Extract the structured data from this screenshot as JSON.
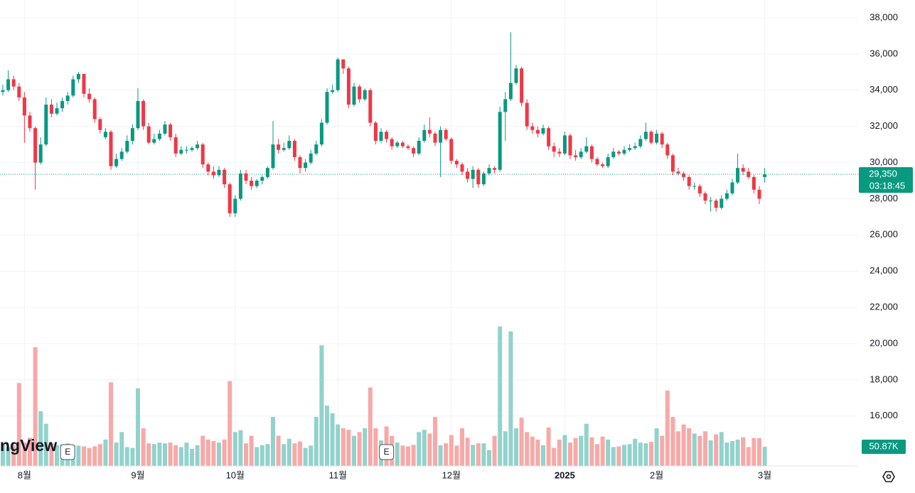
{
  "chart_data": {
    "type": "candlestick",
    "ylim": [
      13240,
      38980
    ],
    "yticks": [
      {
        "value": 16000,
        "label": "16,000"
      },
      {
        "value": 18000,
        "label": "18,000"
      },
      {
        "value": 20000,
        "label": "20,000"
      },
      {
        "value": 22000,
        "label": "22,000"
      },
      {
        "value": 24000,
        "label": "24,000"
      },
      {
        "value": 26000,
        "label": "26,000"
      },
      {
        "value": 28000,
        "label": "28,000"
      },
      {
        "value": 30000,
        "label": "30,000"
      },
      {
        "value": 32000,
        "label": "32,000"
      },
      {
        "value": 34000,
        "label": "34,000"
      },
      {
        "value": 36000,
        "label": "36,000"
      },
      {
        "value": 38000,
        "label": "38,000"
      }
    ],
    "xticks": [
      {
        "value": 4,
        "label": "8월"
      },
      {
        "value": 25,
        "label": "9월"
      },
      {
        "value": 43,
        "label": "10월"
      },
      {
        "value": 62,
        "label": "11월"
      },
      {
        "value": 83,
        "label": "12월"
      },
      {
        "value": 104,
        "label": "2025"
      },
      {
        "value": 121,
        "label": "2월"
      },
      {
        "value": 141,
        "label": "3월"
      }
    ],
    "grid": true,
    "up_color": "#089981",
    "down_color": "#f23645",
    "volume_up_color": "#92d2cc",
    "volume_down_color": "#f7a9a7",
    "volume_ylim": [
      0,
      400000
    ],
    "last_price": {
      "value": 29350,
      "label": "29,350"
    },
    "countdown": "03:18:45",
    "last_volume": {
      "value": 50870,
      "label": "50.87K"
    },
    "logo": "ngView",
    "event_markers": [
      {
        "value": 12,
        "label": "E"
      },
      {
        "value": 71,
        "label": "E"
      }
    ],
    "candles": [
      [
        33900,
        34300,
        33700,
        34000
      ],
      [
        34000,
        35100,
        33900,
        34600
      ],
      [
        34600,
        34800,
        34000,
        34200
      ],
      [
        34200,
        34400,
        33400,
        33600
      ],
      [
        33600,
        33900,
        31100,
        32600
      ],
      [
        32600,
        32800,
        31700,
        31900
      ],
      [
        31900,
        32000,
        28500,
        30000
      ],
      [
        30000,
        31400,
        29900,
        31000
      ],
      [
        31000,
        33600,
        30900,
        33200
      ],
      [
        33200,
        33500,
        32500,
        32700
      ],
      [
        32700,
        33300,
        32600,
        33000
      ],
      [
        33000,
        33600,
        32800,
        33400
      ],
      [
        33400,
        33900,
        33200,
        33700
      ],
      [
        33700,
        34800,
        33600,
        34600
      ],
      [
        34600,
        35000,
        34400,
        34900
      ],
      [
        34900,
        34900,
        33600,
        33800
      ],
      [
        33800,
        34100,
        33300,
        33500
      ],
      [
        33500,
        33600,
        32200,
        32400
      ],
      [
        32400,
        32500,
        31600,
        31800
      ],
      [
        31400,
        31900,
        31300,
        31700
      ],
      [
        31700,
        31800,
        29600,
        29800
      ],
      [
        29800,
        30500,
        29700,
        30200
      ],
      [
        30200,
        30800,
        30100,
        30600
      ],
      [
        30600,
        31500,
        30500,
        31200
      ],
      [
        31200,
        32100,
        31000,
        31900
      ],
      [
        31900,
        34100,
        31800,
        33400
      ],
      [
        33400,
        33500,
        31800,
        32000
      ],
      [
        32000,
        32200,
        31000,
        31100
      ],
      [
        31100,
        31600,
        31000,
        31300
      ],
      [
        31300,
        31800,
        31200,
        31600
      ],
      [
        31600,
        32300,
        31500,
        32100
      ],
      [
        32100,
        32200,
        31200,
        31400
      ],
      [
        31400,
        31600,
        30300,
        30500
      ],
      [
        30500,
        30900,
        30400,
        30700
      ],
      [
        30700,
        30900,
        30500,
        30700
      ],
      [
        30700,
        30900,
        30600,
        30800
      ],
      [
        30800,
        31200,
        30700,
        31000
      ],
      [
        31000,
        31100,
        29700,
        29900
      ],
      [
        29900,
        30000,
        29300,
        29500
      ],
      [
        29500,
        29800,
        29100,
        29300
      ],
      [
        29300,
        29800,
        29200,
        29600
      ],
      [
        29600,
        29700,
        28600,
        28800
      ],
      [
        28800,
        28900,
        27000,
        27200
      ],
      [
        27200,
        28200,
        27000,
        28000
      ],
      [
        28000,
        29600,
        27900,
        29400
      ],
      [
        29400,
        29600,
        28800,
        29000
      ],
      [
        29000,
        29200,
        28500,
        28700
      ],
      [
        28700,
        29100,
        28600,
        29000
      ],
      [
        29000,
        29300,
        28800,
        29200
      ],
      [
        29200,
        29800,
        29100,
        29700
      ],
      [
        29700,
        32300,
        29600,
        31000
      ],
      [
        31000,
        31300,
        30500,
        30700
      ],
      [
        30700,
        31100,
        30600,
        30800
      ],
      [
        30800,
        31500,
        30700,
        31200
      ],
      [
        31200,
        31300,
        30100,
        30300
      ],
      [
        30300,
        30400,
        29400,
        29700
      ],
      [
        29700,
        30200,
        29500,
        30000
      ],
      [
        30000,
        30700,
        29900,
        30500
      ],
      [
        30500,
        31200,
        30400,
        31000
      ],
      [
        31000,
        32400,
        30900,
        32200
      ],
      [
        32200,
        34100,
        32100,
        33900
      ],
      [
        33900,
        34300,
        33800,
        34000
      ],
      [
        34000,
        35800,
        33900,
        35700
      ],
      [
        35700,
        35700,
        34900,
        35200
      ],
      [
        35200,
        35300,
        33000,
        33200
      ],
      [
        33200,
        34400,
        33100,
        34200
      ],
      [
        34200,
        34300,
        33300,
        33500
      ],
      [
        33500,
        34100,
        33400,
        34000
      ],
      [
        34000,
        34100,
        32000,
        32200
      ],
      [
        32200,
        32300,
        31000,
        31200
      ],
      [
        31200,
        31900,
        31100,
        31700
      ],
      [
        31700,
        31800,
        31100,
        31300
      ],
      [
        31300,
        31400,
        30700,
        30900
      ],
      [
        30900,
        31200,
        30800,
        31100
      ],
      [
        31100,
        31200,
        30800,
        30900
      ],
      [
        30900,
        31000,
        30700,
        30800
      ],
      [
        30800,
        30900,
        30300,
        30500
      ],
      [
        30500,
        31400,
        30400,
        31200
      ],
      [
        31200,
        32100,
        31100,
        31800
      ],
      [
        31800,
        32500,
        31400,
        31600
      ],
      [
        31600,
        31700,
        30900,
        31100
      ],
      [
        31100,
        32000,
        29200,
        31800
      ],
      [
        31800,
        31900,
        31200,
        31300
      ],
      [
        31300,
        31400,
        29900,
        30100
      ],
      [
        30100,
        30200,
        29700,
        29900
      ],
      [
        29900,
        30000,
        29300,
        29500
      ],
      [
        29500,
        29700,
        28900,
        29100
      ],
      [
        29100,
        29800,
        28600,
        29600
      ],
      [
        29600,
        29700,
        28600,
        28800
      ],
      [
        28800,
        29500,
        28700,
        29400
      ],
      [
        29400,
        29900,
        29300,
        29700
      ],
      [
        29700,
        29800,
        29400,
        29600
      ],
      [
        29600,
        33100,
        29500,
        32800
      ],
      [
        32800,
        33900,
        31200,
        33500
      ],
      [
        33500,
        37200,
        33400,
        34400
      ],
      [
        34400,
        35400,
        34300,
        35200
      ],
      [
        35200,
        35300,
        33100,
        33300
      ],
      [
        33300,
        33500,
        31800,
        32000
      ],
      [
        32000,
        32200,
        31600,
        31800
      ],
      [
        31800,
        32000,
        31400,
        31600
      ],
      [
        31600,
        32100,
        31500,
        31900
      ],
      [
        31900,
        32000,
        30700,
        30900
      ],
      [
        30900,
        31100,
        30300,
        30600
      ],
      [
        30600,
        30800,
        30300,
        30500
      ],
      [
        30500,
        31700,
        30400,
        31500
      ],
      [
        31500,
        31600,
        30200,
        30400
      ],
      [
        30400,
        30700,
        30100,
        30300
      ],
      [
        30300,
        30800,
        30200,
        30600
      ],
      [
        30600,
        31400,
        30500,
        30900
      ],
      [
        30900,
        31000,
        30000,
        30200
      ],
      [
        30200,
        30300,
        29800,
        29900
      ],
      [
        29900,
        30000,
        29700,
        29800
      ],
      [
        29800,
        30500,
        29700,
        30300
      ],
      [
        30300,
        30800,
        30200,
        30600
      ],
      [
        30600,
        30700,
        30400,
        30500
      ],
      [
        30500,
        30900,
        30400,
        30700
      ],
      [
        30700,
        31000,
        30600,
        30800
      ],
      [
        30800,
        31100,
        30700,
        30900
      ],
      [
        30900,
        31500,
        30800,
        31300
      ],
      [
        31300,
        32200,
        31200,
        31700
      ],
      [
        31700,
        31800,
        31000,
        31100
      ],
      [
        31100,
        31800,
        31000,
        31600
      ],
      [
        31600,
        31700,
        30800,
        31000
      ],
      [
        31000,
        31100,
        30200,
        30400
      ],
      [
        30400,
        30500,
        29300,
        29500
      ],
      [
        29500,
        29700,
        29300,
        29400
      ],
      [
        29400,
        29500,
        29000,
        29200
      ],
      [
        29200,
        29300,
        28500,
        28700
      ],
      [
        28700,
        28900,
        28500,
        28700
      ],
      [
        28700,
        28800,
        28100,
        28300
      ],
      [
        28300,
        28400,
        27700,
        27900
      ],
      [
        27900,
        28100,
        27300,
        27900
      ],
      [
        27900,
        28000,
        27300,
        27500
      ],
      [
        27500,
        28200,
        27400,
        28000
      ],
      [
        28000,
        28500,
        27900,
        28300
      ],
      [
        28300,
        29100,
        28200,
        28900
      ],
      [
        28900,
        30500,
        28800,
        29700
      ],
      [
        29700,
        29900,
        29300,
        29500
      ],
      [
        29500,
        29700,
        29100,
        29200
      ],
      [
        29200,
        29300,
        28300,
        28500
      ],
      [
        28500,
        28700,
        27700,
        28000
      ],
      [
        29200,
        29700,
        28900,
        29350
      ]
    ],
    "volume": [
      60000,
      50000,
      55000,
      220000,
      62000,
      75000,
      315000,
      145000,
      112000,
      60000,
      55000,
      58000,
      60000,
      56000,
      54000,
      52000,
      48000,
      52000,
      58000,
      70000,
      222000,
      62000,
      90000,
      50000,
      48000,
      206000,
      100000,
      60000,
      58000,
      62000,
      60000,
      62000,
      55000,
      50000,
      62000,
      45000,
      55000,
      80000,
      70000,
      66000,
      62000,
      70000,
      225000,
      90000,
      95000,
      60000,
      80000,
      50000,
      55000,
      58000,
      130000,
      80000,
      58000,
      72000,
      60000,
      65000,
      48000,
      54000,
      130000,
      320000,
      160000,
      140000,
      110000,
      100000,
      96000,
      80000,
      90000,
      100000,
      208000,
      100000,
      68000,
      105000,
      80000,
      62000,
      54000,
      52000,
      56000,
      90000,
      96000,
      86000,
      130000,
      55000,
      60000,
      82000,
      54000,
      100000,
      75000,
      56000,
      60000,
      60000,
      42000,
      80000,
      370000,
      92000,
      357000,
      100000,
      128000,
      90000,
      78000,
      70000,
      55000,
      102000,
      48000,
      70000,
      82000,
      62000,
      74000,
      80000,
      112000,
      76000,
      58000,
      78000,
      70000,
      50000,
      52000,
      56000,
      58000,
      72000,
      62000,
      60000,
      64000,
      100000,
      80000,
      200000,
      130000,
      92000,
      110000,
      100000,
      86000,
      80000,
      92000,
      68000,
      84000,
      90000,
      62000,
      66000,
      70000,
      76000,
      50000,
      74000,
      74000,
      50870
    ]
  }
}
